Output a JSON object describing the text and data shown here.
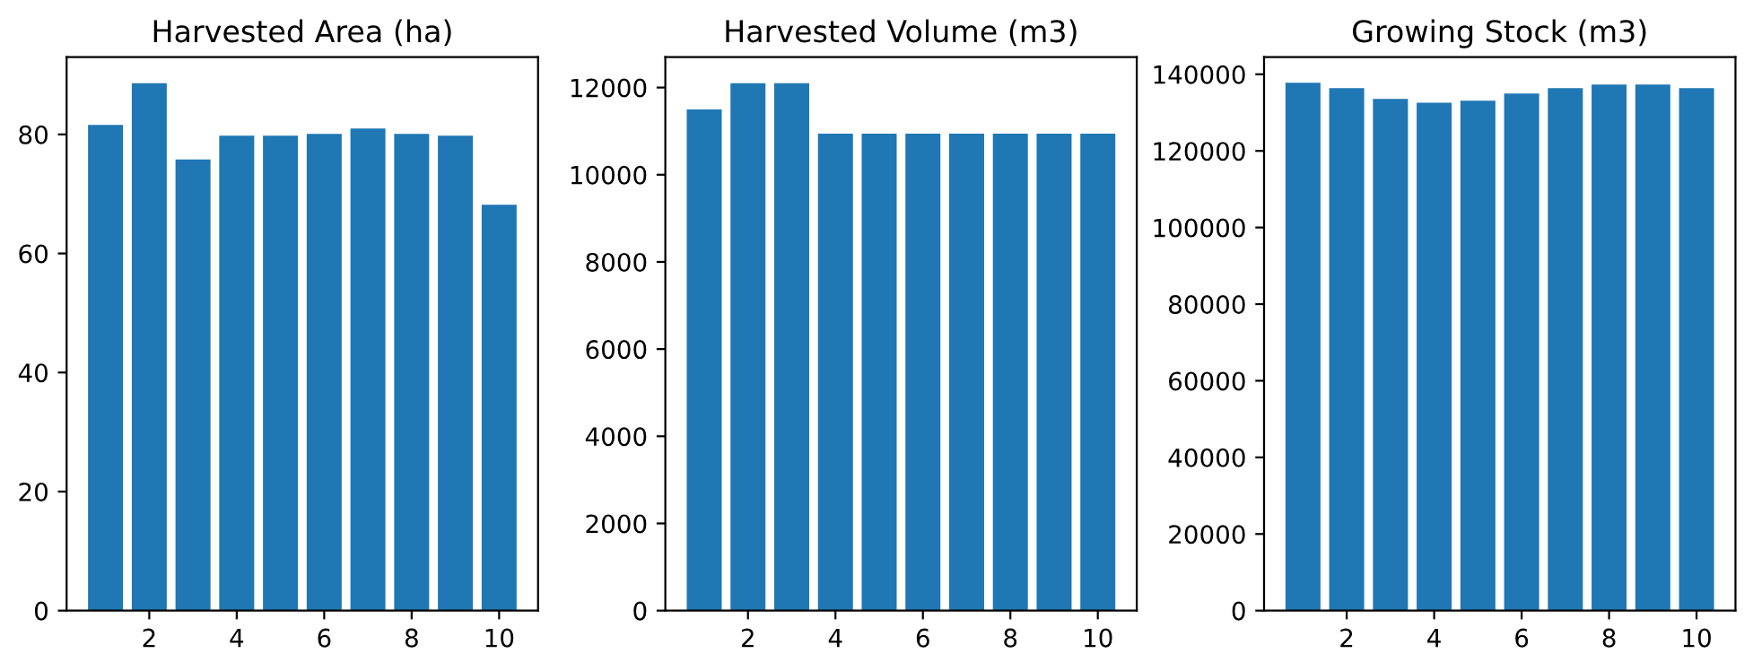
{
  "chart_data": [
    {
      "type": "bar",
      "title": "Harvested Area (ha)",
      "x": [
        1,
        2,
        3,
        4,
        5,
        6,
        7,
        8,
        9,
        10
      ],
      "values": [
        81.6,
        88.6,
        75.8,
        79.8,
        79.8,
        80.1,
        81.0,
        80.1,
        79.8,
        68.2
      ],
      "color": "#1f77b4",
      "xlim": [
        0.11,
        10.89
      ],
      "xticks": [
        2,
        4,
        6,
        8,
        10
      ],
      "ylim": [
        0,
        93
      ],
      "yticks": [
        0,
        20,
        40,
        60,
        80
      ],
      "grid": false,
      "legend": false
    },
    {
      "type": "bar",
      "title": "Harvested Volume (m3)",
      "x": [
        1,
        2,
        3,
        4,
        5,
        6,
        7,
        8,
        9,
        10
      ],
      "values": [
        11500,
        12100,
        12100,
        10940,
        10940,
        10940,
        10940,
        10940,
        10940,
        10940
      ],
      "color": "#1f77b4",
      "xlim": [
        0.11,
        10.89
      ],
      "xticks": [
        2,
        4,
        6,
        8,
        10
      ],
      "ylim": [
        0,
        12700
      ],
      "yticks": [
        0,
        2000,
        4000,
        6000,
        8000,
        10000,
        12000
      ],
      "grid": false,
      "legend": false
    },
    {
      "type": "bar",
      "title": "Growing Stock (m3)",
      "x": [
        1,
        2,
        3,
        4,
        5,
        6,
        7,
        8,
        9,
        10
      ],
      "values": [
        137800,
        136400,
        133600,
        132600,
        133100,
        135000,
        136400,
        137300,
        137300,
        136400
      ],
      "color": "#1f77b4",
      "xlim": [
        0.11,
        10.89
      ],
      "xticks": [
        2,
        4,
        6,
        8,
        10
      ],
      "ylim": [
        0,
        144500
      ],
      "yticks": [
        0,
        20000,
        40000,
        60000,
        80000,
        100000,
        120000,
        140000
      ],
      "grid": false,
      "legend": false
    }
  ]
}
